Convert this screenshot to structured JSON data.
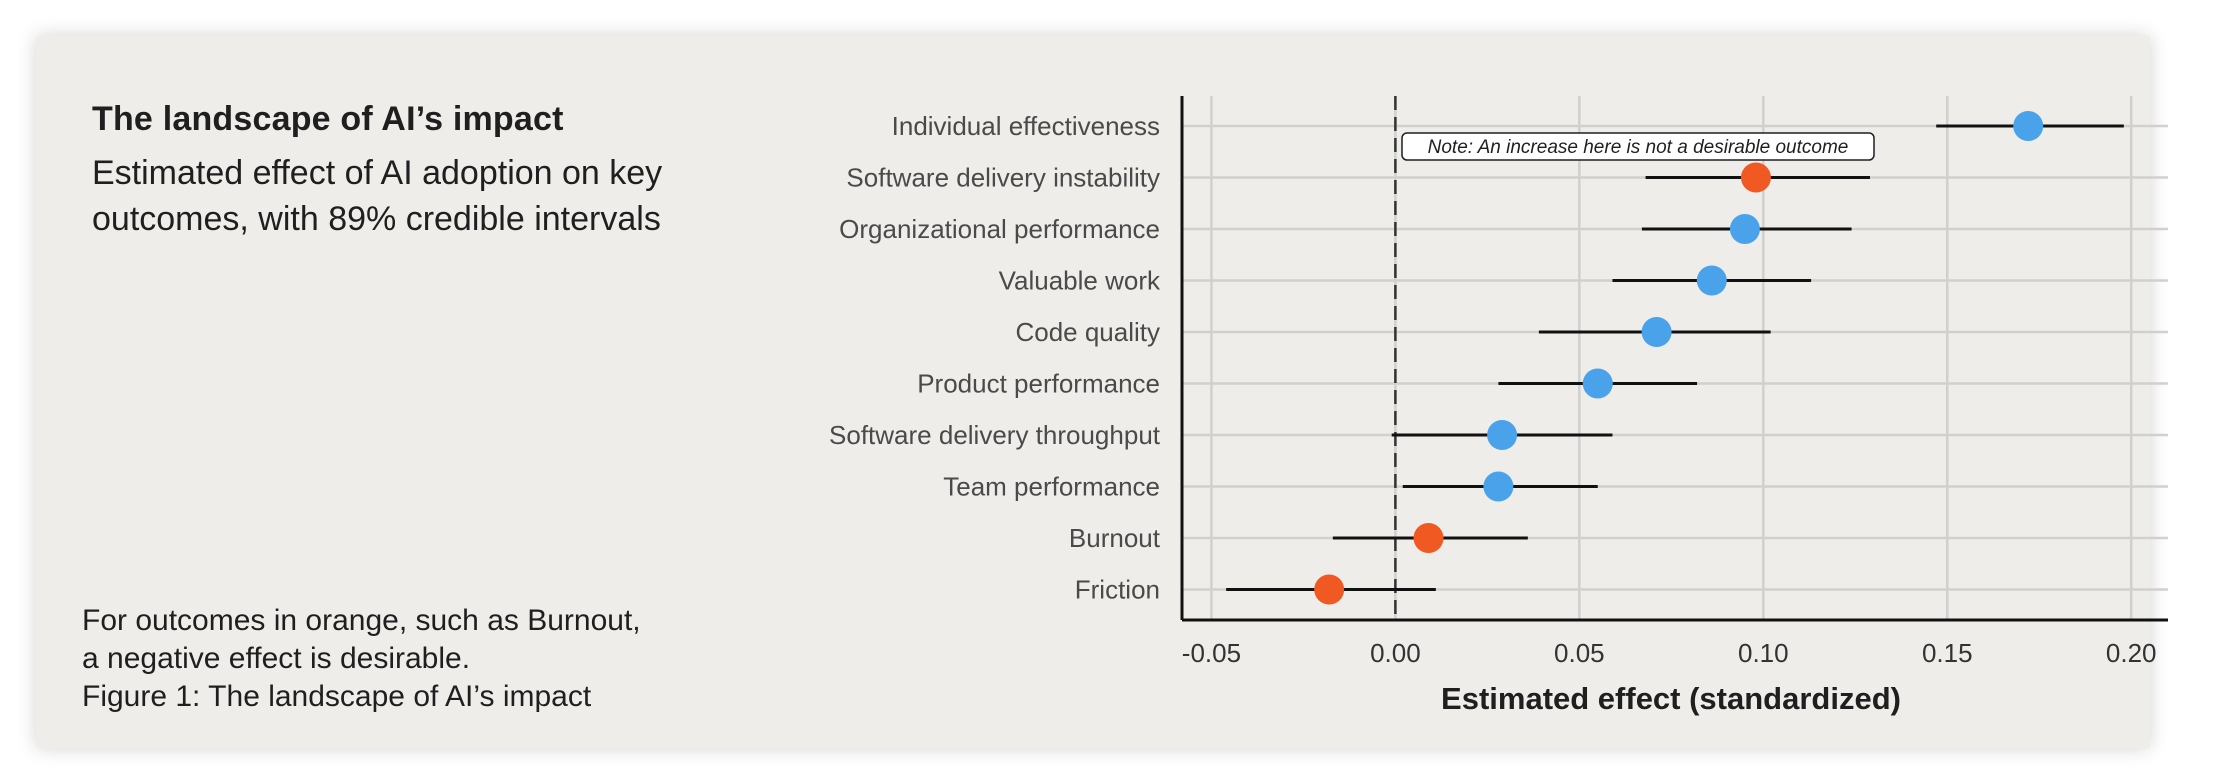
{
  "header": {
    "title": "The landscape of AI’s impact",
    "subtitle": "Estimated effect of AI adoption on key outcomes, with 89% credible intervals"
  },
  "footnote": {
    "line1": "For outcomes in orange, such as Burnout,",
    "line2": "a negative effect is desirable.",
    "caption": "Figure 1: The landscape of AI’s impact"
  },
  "colors": {
    "positive": "#4aa3ea",
    "negative_desirable": "#f05a22",
    "grid": "#d2d0cd",
    "axis": "#111111"
  },
  "chart_data": {
    "type": "scatter",
    "subtype": "forest-plot",
    "title": "The landscape of AI’s impact",
    "xlabel": "Estimated effect (standardized)",
    "ylabel": "",
    "xlim": [
      -0.058,
      0.21
    ],
    "xticks": [
      -0.05,
      0.0,
      0.05,
      0.1,
      0.15,
      0.2
    ],
    "xtick_labels": [
      "-0.05",
      "0.00",
      "0.05",
      "0.10",
      "0.15",
      "0.20"
    ],
    "reference_line": 0.0,
    "grid": true,
    "annotation": {
      "text": "Note: An increase here is not a desirable outcome",
      "target": "Software delivery instability"
    },
    "series": [
      {
        "label": "Individual effectiveness",
        "estimate": 0.172,
        "lower": 0.147,
        "upper": 0.198,
        "group": "positive"
      },
      {
        "label": "Software delivery instability",
        "estimate": 0.098,
        "lower": 0.068,
        "upper": 0.129,
        "group": "negative_desirable"
      },
      {
        "label": "Organizational performance",
        "estimate": 0.095,
        "lower": 0.067,
        "upper": 0.124,
        "group": "positive"
      },
      {
        "label": "Valuable work",
        "estimate": 0.086,
        "lower": 0.059,
        "upper": 0.113,
        "group": "positive"
      },
      {
        "label": "Code quality",
        "estimate": 0.071,
        "lower": 0.039,
        "upper": 0.102,
        "group": "positive"
      },
      {
        "label": "Product performance",
        "estimate": 0.055,
        "lower": 0.028,
        "upper": 0.082,
        "group": "positive"
      },
      {
        "label": "Software delivery throughput",
        "estimate": 0.029,
        "lower": -0.001,
        "upper": 0.059,
        "group": "positive"
      },
      {
        "label": "Team performance",
        "estimate": 0.028,
        "lower": 0.002,
        "upper": 0.055,
        "group": "positive"
      },
      {
        "label": "Burnout",
        "estimate": 0.009,
        "lower": -0.017,
        "upper": 0.036,
        "group": "negative_desirable"
      },
      {
        "label": "Friction",
        "estimate": -0.018,
        "lower": -0.046,
        "upper": 0.011,
        "group": "negative_desirable"
      }
    ]
  }
}
